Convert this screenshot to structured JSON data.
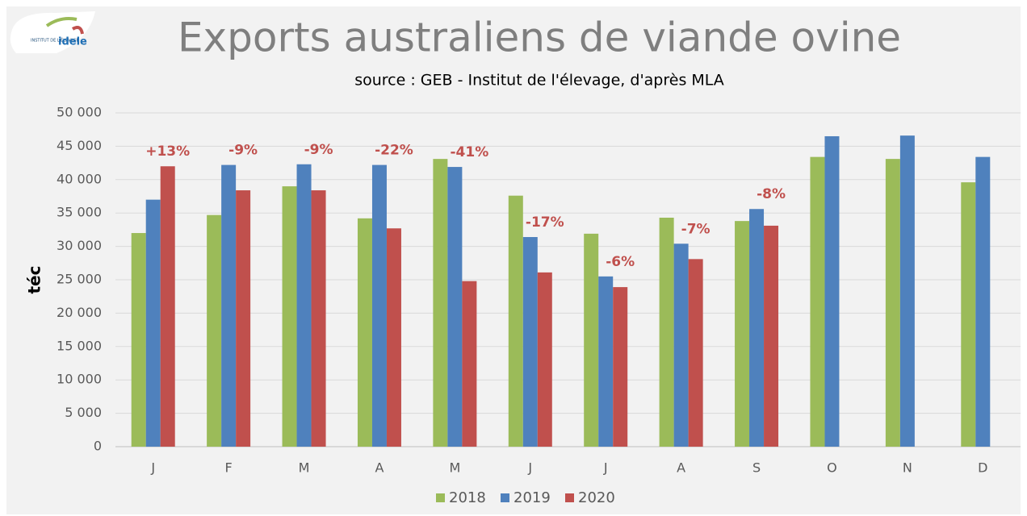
{
  "chart_data": {
    "type": "bar",
    "title": "Exports australiens de viande ovine",
    "subtitle": "source : GEB - Institut de l'élevage, d'après MLA",
    "logo": [
      "INSTITUT DE L'ÉLEVAGE",
      "idele"
    ],
    "ylabel": "téc",
    "categories": [
      "J",
      "F",
      "M",
      "A",
      "M",
      "J",
      "J",
      "A",
      "S",
      "O",
      "N",
      "D"
    ],
    "series": [
      {
        "name": "2018",
        "color": "#9bbb59",
        "values": [
          32000,
          34700,
          39000,
          34200,
          43100,
          37600,
          31900,
          34300,
          33800,
          43400,
          43100,
          39600
        ]
      },
      {
        "name": "2019",
        "color": "#4f81bd",
        "values": [
          37000,
          42200,
          42300,
          42200,
          41900,
          31400,
          25500,
          30400,
          35600,
          46500,
          46600,
          43400
        ]
      },
      {
        "name": "2020",
        "color": "#c0504d",
        "values": [
          42000,
          38400,
          38400,
          32700,
          24800,
          26100,
          23900,
          28100,
          33100,
          null,
          null,
          null
        ]
      }
    ],
    "annotations": [
      "+13%",
      "-9%",
      "-9%",
      "-22%",
      "-41%",
      "-17%",
      "-6%",
      "-7%",
      "-8%",
      null,
      null,
      null
    ],
    "annotation_color": "#c0504d",
    "ylim": [
      0,
      50000
    ],
    "yticks": [
      0,
      {
        "value": 5000,
        "label": "5 000"
      },
      {
        "value": 10000,
        "label": "10 000"
      },
      {
        "value": 15000,
        "label": "15 000"
      },
      {
        "value": 20000,
        "label": "20 000"
      },
      {
        "value": 25000,
        "label": "25 000"
      },
      {
        "value": 30000,
        "label": "30 000"
      },
      {
        "value": 35000,
        "label": "35 000"
      },
      {
        "value": 40000,
        "label": "40 000"
      },
      {
        "value": 45000,
        "label": "45 000"
      },
      {
        "value": 50000,
        "label": "50 000"
      }
    ],
    "grid": true,
    "legend": "bottom"
  }
}
